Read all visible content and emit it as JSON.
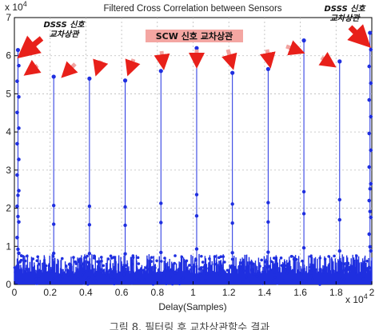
{
  "chart_data": {
    "type": "scatter",
    "title": "Filtered Cross Correlation between Sensors",
    "xlabel": "Delay(Samples)",
    "ylabel": "",
    "x_exponent_label": "x 10",
    "x_exponent_power": "4",
    "y_exponent_label": "x 10",
    "y_exponent_power": "4",
    "xlim": [
      0,
      2
    ],
    "ylim": [
      0,
      7
    ],
    "x_ticks": [
      "0",
      "0.2",
      "0.4",
      "0.6",
      "0.8",
      "1",
      "1.2",
      "1.4",
      "1.6",
      "1.8",
      "2"
    ],
    "y_ticks": [
      "0",
      "1",
      "2",
      "3",
      "4",
      "5",
      "6",
      "7"
    ],
    "series_color": "#1f2fe0",
    "noise_floor_max": 0.8,
    "peaks": [
      {
        "x": 0.02,
        "y": 6.15,
        "kind": "DSSS"
      },
      {
        "x": 0.22,
        "y": 5.45,
        "kind": "SCW"
      },
      {
        "x": 0.42,
        "y": 5.4,
        "kind": "SCW"
      },
      {
        "x": 0.62,
        "y": 5.35,
        "kind": "SCW"
      },
      {
        "x": 0.82,
        "y": 5.6,
        "kind": "SCW"
      },
      {
        "x": 1.02,
        "y": 6.2,
        "kind": "SCW"
      },
      {
        "x": 1.22,
        "y": 5.55,
        "kind": "SCW"
      },
      {
        "x": 1.42,
        "y": 5.65,
        "kind": "SCW"
      },
      {
        "x": 1.62,
        "y": 6.4,
        "kind": "SCW"
      },
      {
        "x": 1.82,
        "y": 5.85,
        "kind": "SCW"
      },
      {
        "x": 1.99,
        "y": 6.6,
        "kind": "DSSS"
      }
    ],
    "annotations": {
      "dsss": "DSSS 신호 교차상관",
      "scw": "SCW 신호 교차상관"
    }
  },
  "caption": "그림 8. 필터링 후 교차상관함수 결과"
}
